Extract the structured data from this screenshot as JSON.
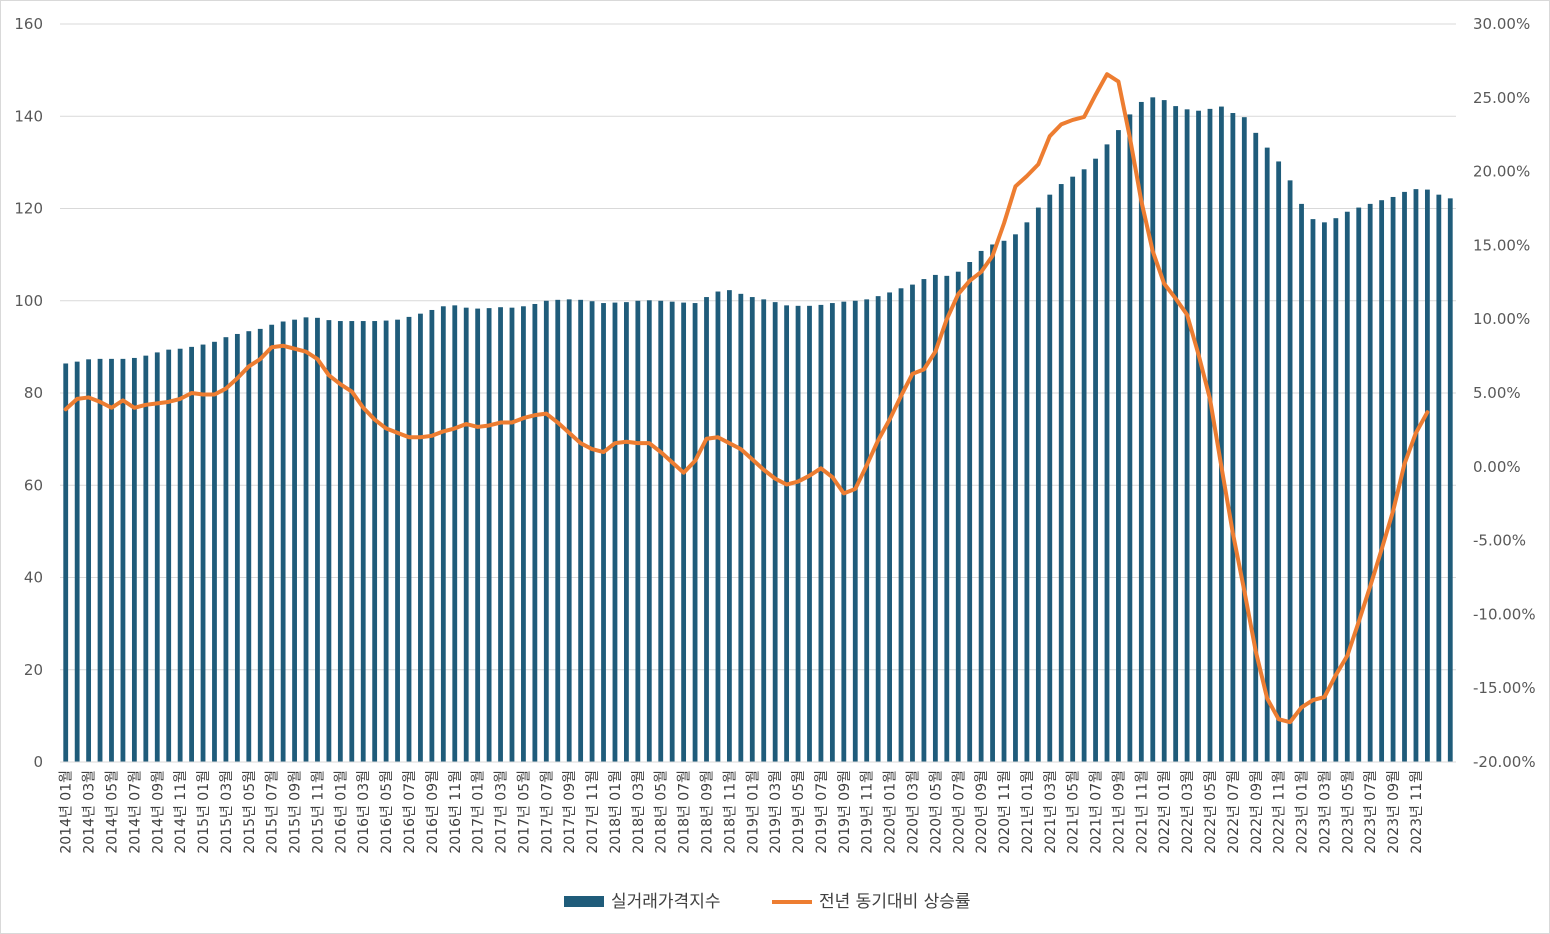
{
  "chart_data": {
    "type": "bar+line",
    "title": "",
    "colors": {
      "bar": "#1F5C7A",
      "line": "#ED7D31",
      "grid": "#D9D9D9",
      "tick": "#595959"
    },
    "y_left": {
      "min": 0,
      "max": 160,
      "step": 20,
      "ticks": [
        "0",
        "20",
        "40",
        "60",
        "80",
        "100",
        "120",
        "140",
        "160"
      ]
    },
    "y_right": {
      "min": -20,
      "max": 30,
      "step": 5,
      "ticks": [
        "-20.00%",
        "-15.00%",
        "-10.00%",
        "-5.00%",
        "0.00%",
        "5.00%",
        "10.00%",
        "15.00%",
        "20.00%",
        "25.00%",
        "30.00%"
      ]
    },
    "x_tick_labels": [
      "2014년 01월",
      "2014년 03월",
      "2014년 05월",
      "2014년 07월",
      "2014년 09월",
      "2014년 11월",
      "2015년 01월",
      "2015년 03월",
      "2015년 05월",
      "2015년 07월",
      "2015년 09월",
      "2015년 11월",
      "2016년 01월",
      "2016년 03월",
      "2016년 05월",
      "2016년 07월",
      "2016년 09월",
      "2016년 11월",
      "2017년 01월",
      "2017년 03월",
      "2017년 05월",
      "2017년 07월",
      "2017년 09월",
      "2017년 11월",
      "2018년 01월",
      "2018년 03월",
      "2018년 05월",
      "2018년 07월",
      "2018년 09월",
      "2018년 11월",
      "2019년 01월",
      "2019년 03월",
      "2019년 05월",
      "2019년 07월",
      "2019년 09월",
      "2019년 11월",
      "2020년 01월",
      "2020년 03월",
      "2020년 05월",
      "2020년 07월",
      "2020년 09월",
      "2020년 11월",
      "2021년 01월",
      "2021년 03월",
      "2021년 05월",
      "2021년 07월",
      "2021년 09월",
      "2021년 11월",
      "2022년 01월",
      "2022년 03월",
      "2022년 05월",
      "2022년 07월",
      "2022년 09월",
      "2022년 11월",
      "2023년 01월",
      "2023년 03월",
      "2023년 05월",
      "2023년 07월",
      "2023년 09월",
      "2023년 11월"
    ],
    "series": [
      {
        "name": "실거래가격지수",
        "type": "bar",
        "axis": "left",
        "values": [
          86.4,
          86.8,
          87.3,
          87.4,
          87.4,
          87.4,
          87.6,
          88.1,
          88.8,
          89.4,
          89.6,
          90.0,
          90.5,
          91.1,
          92.1,
          92.8,
          93.4,
          93.9,
          94.8,
          95.5,
          95.9,
          96.4,
          96.3,
          95.8,
          95.6,
          95.6,
          95.6,
          95.6,
          95.7,
          95.9,
          96.5,
          97.2,
          98.0,
          98.8,
          99.0,
          98.5,
          98.3,
          98.4,
          98.6,
          98.5,
          98.8,
          99.3,
          100.0,
          100.2,
          100.3,
          100.2,
          99.9,
          99.5,
          99.6,
          99.7,
          100.0,
          100.1,
          100.0,
          99.8,
          99.6,
          99.5,
          100.8,
          102.0,
          102.3,
          101.5,
          100.8,
          100.3,
          99.7,
          99.0,
          98.9,
          98.9,
          99.1,
          99.5,
          99.8,
          100.0,
          100.3,
          101.0,
          101.8,
          102.7,
          103.5,
          104.7,
          105.6,
          105.4,
          106.3,
          108.4,
          110.8,
          112.2,
          113.0,
          114.4,
          117.0,
          120.2,
          123.0,
          125.3,
          126.9,
          128.5,
          130.8,
          133.9,
          137.0,
          140.4,
          143.1,
          144.1,
          143.5,
          142.2,
          141.5,
          141.2,
          141.6,
          142.1,
          140.7,
          139.8,
          136.4,
          133.2,
          130.2,
          126.1,
          121.0,
          117.7,
          117.0,
          117.9,
          119.3,
          120.2,
          121.0,
          121.8,
          122.5,
          123.6,
          124.2,
          124.1,
          123.0,
          122.2
        ]
      },
      {
        "name": "전년 동기대비 상승률",
        "type": "line",
        "axis": "right",
        "values": [
          3.9,
          4.6,
          4.7,
          4.4,
          4.0,
          4.5,
          4.0,
          4.2,
          4.3,
          4.4,
          4.6,
          5.0,
          4.9,
          4.9,
          5.3,
          6.0,
          6.8,
          7.3,
          8.1,
          8.2,
          8.0,
          7.8,
          7.3,
          6.2,
          5.6,
          5.1,
          4.0,
          3.2,
          2.6,
          2.3,
          2.0,
          2.0,
          2.1,
          2.4,
          2.6,
          2.9,
          2.7,
          2.8,
          3.0,
          3.0,
          3.3,
          3.5,
          3.6,
          3.0,
          2.3,
          1.6,
          1.2,
          1.0,
          1.6,
          1.7,
          1.6,
          1.6,
          1.0,
          0.3,
          -0.4,
          0.4,
          1.9,
          2.0,
          1.6,
          1.2,
          0.5,
          -0.2,
          -0.8,
          -1.2,
          -1.0,
          -0.6,
          -0.1,
          -0.7,
          -1.8,
          -1.5,
          0.1,
          1.8,
          3.2,
          4.8,
          6.3,
          6.6,
          7.8,
          10.0,
          11.7,
          12.6,
          13.2,
          14.3,
          16.5,
          19.0,
          19.7,
          20.5,
          22.4,
          23.2,
          23.5,
          23.7,
          25.2,
          26.6,
          26.1,
          22.3,
          18.0,
          14.6,
          12.4,
          11.4,
          10.3,
          7.6,
          4.6,
          0.0,
          -4.5,
          -8.4,
          -12.5,
          -15.7,
          -17.1,
          -17.3,
          -16.3,
          -15.8,
          -15.6,
          -14.1,
          -12.8,
          -10.5,
          -8.1,
          -5.6,
          -3.0,
          0.2,
          2.3,
          3.7
        ]
      }
    ],
    "legend": {
      "position": "bottom",
      "items": [
        {
          "label": "실거래가격지수",
          "type": "bar"
        },
        {
          "label": "전년 동기대비 상승률",
          "type": "line"
        }
      ]
    }
  }
}
